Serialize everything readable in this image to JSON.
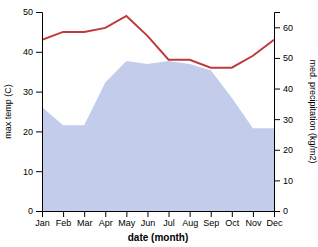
{
  "chart_data": {
    "type": "line",
    "categories": [
      "Jan",
      "Feb",
      "Mar",
      "Apr",
      "May",
      "Jun",
      "Jul",
      "Aug",
      "Sep",
      "Oct",
      "Nov",
      "Dec"
    ],
    "series": [
      {
        "type": "area",
        "axis": "y2",
        "color": "#b8c4e8",
        "values": [
          34,
          28,
          28,
          42,
          49,
          48,
          49,
          48,
          46,
          37,
          27,
          27
        ]
      },
      {
        "type": "line",
        "color": "#c0393b",
        "values": [
          43,
          45,
          45,
          46,
          49,
          44,
          38,
          38,
          36,
          36,
          39,
          43
        ]
      }
    ],
    "xlabel": "date (month)",
    "ylabel": "max temp (C)",
    "y2label": "med. precipitation (kg/m2)",
    "ylim": [
      0,
      50
    ],
    "yticks": [
      0,
      10,
      20,
      30,
      40,
      50
    ],
    "y2lim": [
      0,
      65
    ],
    "y2ticks": [
      0,
      10,
      20,
      30,
      40,
      50,
      60
    ],
    "grid": false
  }
}
